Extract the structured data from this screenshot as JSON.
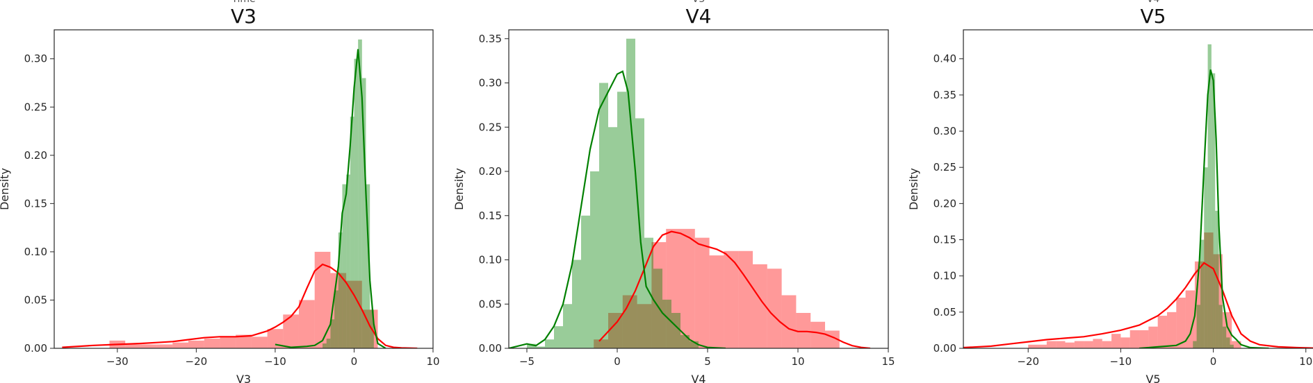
{
  "chart_data": [
    {
      "type": "histogram+kde",
      "title": "V3",
      "clipped_title_above": "Time",
      "xlabel": "V3",
      "ylabel": "Density",
      "xlim": [
        -38,
        10
      ],
      "ylim": [
        0,
        0.33
      ],
      "xticks": [
        -30,
        -20,
        -10,
        0,
        10
      ],
      "yticks": [
        0.0,
        0.05,
        0.1,
        0.15,
        0.2,
        0.25,
        0.3
      ],
      "series": [
        {
          "color": "#ff0000",
          "hist": {
            "bin_edges": [
              -31,
              -29,
              -27,
              -25,
              -23,
              -21,
              -19,
              -17,
              -15,
              -13,
              -11,
              -9,
              -7,
              -5,
              -3,
              -1,
              1,
              3
            ],
            "density": [
              0.008,
              0.004,
              0.004,
              0.004,
              0.006,
              0.008,
              0.01,
              0.012,
              0.014,
              0.012,
              0.02,
              0.035,
              0.05,
              0.1,
              0.078,
              0.07,
              0.04
            ]
          },
          "kde": {
            "x": [
              -37,
              -33,
              -30,
              -27,
              -25,
              -23,
              -21,
              -19,
              -17,
              -15,
              -13,
              -11,
              -10,
              -9,
              -8,
              -7,
              -6,
              -5,
              -4,
              -3,
              -2,
              -1,
              0,
              1,
              2,
              3,
              4,
              5,
              6,
              8
            ],
            "y": [
              0.001,
              0.003,
              0.004,
              0.005,
              0.006,
              0.007,
              0.009,
              0.011,
              0.012,
              0.012,
              0.013,
              0.018,
              0.022,
              0.027,
              0.033,
              0.043,
              0.062,
              0.08,
              0.087,
              0.084,
              0.078,
              0.068,
              0.055,
              0.04,
              0.023,
              0.01,
              0.003,
              0.001,
              0.0005,
              0
            ]
          }
        },
        {
          "color": "#008000",
          "hist": {
            "bin_edges": [
              -4,
              -3.5,
              -3,
              -2.5,
              -2,
              -1.5,
              -1,
              -0.5,
              0,
              0.5,
              1,
              1.5,
              2,
              2.5
            ],
            "density": [
              0.005,
              0.01,
              0.03,
              0.06,
              0.12,
              0.17,
              0.18,
              0.24,
              0.3,
              0.32,
              0.28,
              0.17,
              0.04
            ]
          },
          "kde": {
            "x": [
              -10,
              -8,
              -6,
              -5,
              -4,
              -3,
              -2,
              -1.5,
              -1,
              -0.5,
              0,
              0.5,
              1,
              1.5,
              2,
              2.5,
              3,
              4
            ],
            "y": [
              0.004,
              0.001,
              0.002,
              0.003,
              0.008,
              0.025,
              0.085,
              0.14,
              0.16,
              0.21,
              0.27,
              0.31,
              0.26,
              0.16,
              0.07,
              0.025,
              0.005,
              0
            ]
          }
        }
      ]
    },
    {
      "type": "histogram+kde",
      "title": "V4",
      "clipped_title_above": "V3",
      "xlabel": "V4",
      "ylabel": "Density",
      "xlim": [
        -6,
        15
      ],
      "ylim": [
        0,
        0.36
      ],
      "xticks": [
        -5,
        0,
        5,
        10,
        15
      ],
      "yticks": [
        0.0,
        0.05,
        0.1,
        0.15,
        0.2,
        0.25,
        0.3,
        0.35
      ],
      "series": [
        {
          "color": "#ff0000",
          "hist": {
            "bin_edges": [
              -1.3,
              -0.5,
              0.3,
              1.1,
              1.9,
              2.7,
              3.5,
              4.3,
              5.1,
              5.9,
              6.7,
              7.5,
              8.3,
              9.1,
              9.9,
              10.7,
              11.5,
              12.3
            ],
            "density": [
              0.01,
              0.04,
              0.06,
              0.05,
              0.12,
              0.135,
              0.135,
              0.125,
              0.105,
              0.11,
              0.11,
              0.095,
              0.09,
              0.06,
              0.04,
              0.03,
              0.02
            ]
          },
          "kde": {
            "x": [
              -1,
              0,
              0.5,
              1,
              1.5,
              2,
              2.5,
              3,
              3.5,
              4,
              4.5,
              5,
              5.5,
              6,
              6.5,
              7,
              7.5,
              8,
              8.5,
              9,
              9.5,
              10,
              10.5,
              11,
              11.5,
              12,
              12.5,
              13,
              13.5,
              14
            ],
            "y": [
              0.008,
              0.03,
              0.045,
              0.065,
              0.09,
              0.115,
              0.128,
              0.132,
              0.13,
              0.125,
              0.118,
              0.115,
              0.112,
              0.107,
              0.097,
              0.083,
              0.068,
              0.053,
              0.04,
              0.03,
              0.022,
              0.019,
              0.019,
              0.018,
              0.016,
              0.012,
              0.007,
              0.003,
              0.001,
              0
            ]
          }
        },
        {
          "color": "#008000",
          "hist": {
            "bin_edges": [
              -5,
              -4.5,
              -4,
              -3.5,
              -3,
              -2.5,
              -2,
              -1.5,
              -1,
              -0.5,
              0,
              0.5,
              1,
              1.5,
              2,
              2.5,
              3,
              3.5,
              4,
              4.5
            ],
            "density": [
              0.005,
              0.002,
              0.01,
              0.025,
              0.05,
              0.1,
              0.15,
              0.2,
              0.3,
              0.25,
              0.29,
              0.35,
              0.26,
              0.125,
              0.09,
              0.055,
              0.04,
              0.015,
              0.008
            ]
          },
          "kde": {
            "x": [
              -6,
              -5,
              -4.5,
              -4,
              -3.5,
              -3,
              -2.5,
              -2,
              -1.5,
              -1,
              -0.5,
              0,
              0.3,
              0.6,
              1,
              1.3,
              1.6,
              2,
              2.5,
              3,
              3.5,
              4,
              4.5,
              5,
              6
            ],
            "y": [
              0,
              0.005,
              0.003,
              0.01,
              0.025,
              0.05,
              0.095,
              0.16,
              0.225,
              0.27,
              0.29,
              0.31,
              0.313,
              0.29,
              0.2,
              0.12,
              0.07,
              0.055,
              0.04,
              0.03,
              0.02,
              0.01,
              0.004,
              0.001,
              0
            ]
          }
        }
      ]
    },
    {
      "type": "histogram+kde",
      "title": "V5",
      "clipped_title_above": "V4",
      "xlabel": "V5",
      "ylabel": "Density",
      "xlim": [
        -27,
        14
      ],
      "ylim": [
        0,
        0.44
      ],
      "xticks": [
        -20,
        -10,
        0,
        10
      ],
      "yticks": [
        0.0,
        0.05,
        0.1,
        0.15,
        0.2,
        0.25,
        0.3,
        0.35,
        0.4
      ],
      "series": [
        {
          "color": "#ff0000",
          "hist": {
            "bin_edges": [
              -20,
              -19,
              -18,
              -17,
              -16,
              -15,
              -14,
              -13,
              -12,
              -11,
              -10,
              -9,
              -8,
              -7,
              -6,
              -5,
              -4,
              -3,
              -2,
              -1,
              0,
              1,
              2,
              3
            ],
            "density": [
              0.005,
              0.005,
              0.01,
              0.01,
              0.008,
              0.01,
              0.01,
              0.013,
              0.01,
              0.02,
              0.015,
              0.025,
              0.025,
              0.03,
              0.045,
              0.05,
              0.07,
              0.08,
              0.12,
              0.16,
              0.13,
              0.05,
              0.01
            ]
          },
          "kde": {
            "x": [
              -27,
              -24,
              -22,
              -20,
              -18,
              -16,
              -14,
              -12,
              -10,
              -8,
              -6,
              -5,
              -4,
              -3,
              -2,
              -1,
              0,
              1,
              2,
              3,
              4,
              5,
              7,
              9,
              12
            ],
            "y": [
              0.001,
              0.003,
              0.006,
              0.009,
              0.012,
              0.014,
              0.016,
              0.02,
              0.025,
              0.032,
              0.045,
              0.055,
              0.068,
              0.084,
              0.103,
              0.118,
              0.11,
              0.08,
              0.045,
              0.02,
              0.01,
              0.005,
              0.002,
              0.001,
              0
            ]
          }
        },
        {
          "color": "#008000",
          "hist": {
            "bin_edges": [
              -2.2,
              -1.8,
              -1.4,
              -1.0,
              -0.6,
              -0.2,
              0.2,
              0.6,
              1.0,
              1.4,
              1.8,
              2.2
            ],
            "density": [
              0.01,
              0.06,
              0.15,
              0.25,
              0.42,
              0.38,
              0.19,
              0.06,
              0.03,
              0.015,
              0.005
            ]
          },
          "kde": {
            "x": [
              -8,
              -6,
              -5,
              -4,
              -3,
              -2.5,
              -2,
              -1.5,
              -1,
              -0.6,
              -0.3,
              0,
              0.3,
              0.6,
              1,
              1.5,
              2,
              2.5,
              3,
              4,
              6
            ],
            "y": [
              0,
              0.002,
              0.003,
              0.004,
              0.01,
              0.02,
              0.045,
              0.12,
              0.25,
              0.35,
              0.385,
              0.37,
              0.29,
              0.17,
              0.07,
              0.03,
              0.018,
              0.012,
              0.005,
              0.001,
              0
            ]
          }
        }
      ]
    }
  ]
}
